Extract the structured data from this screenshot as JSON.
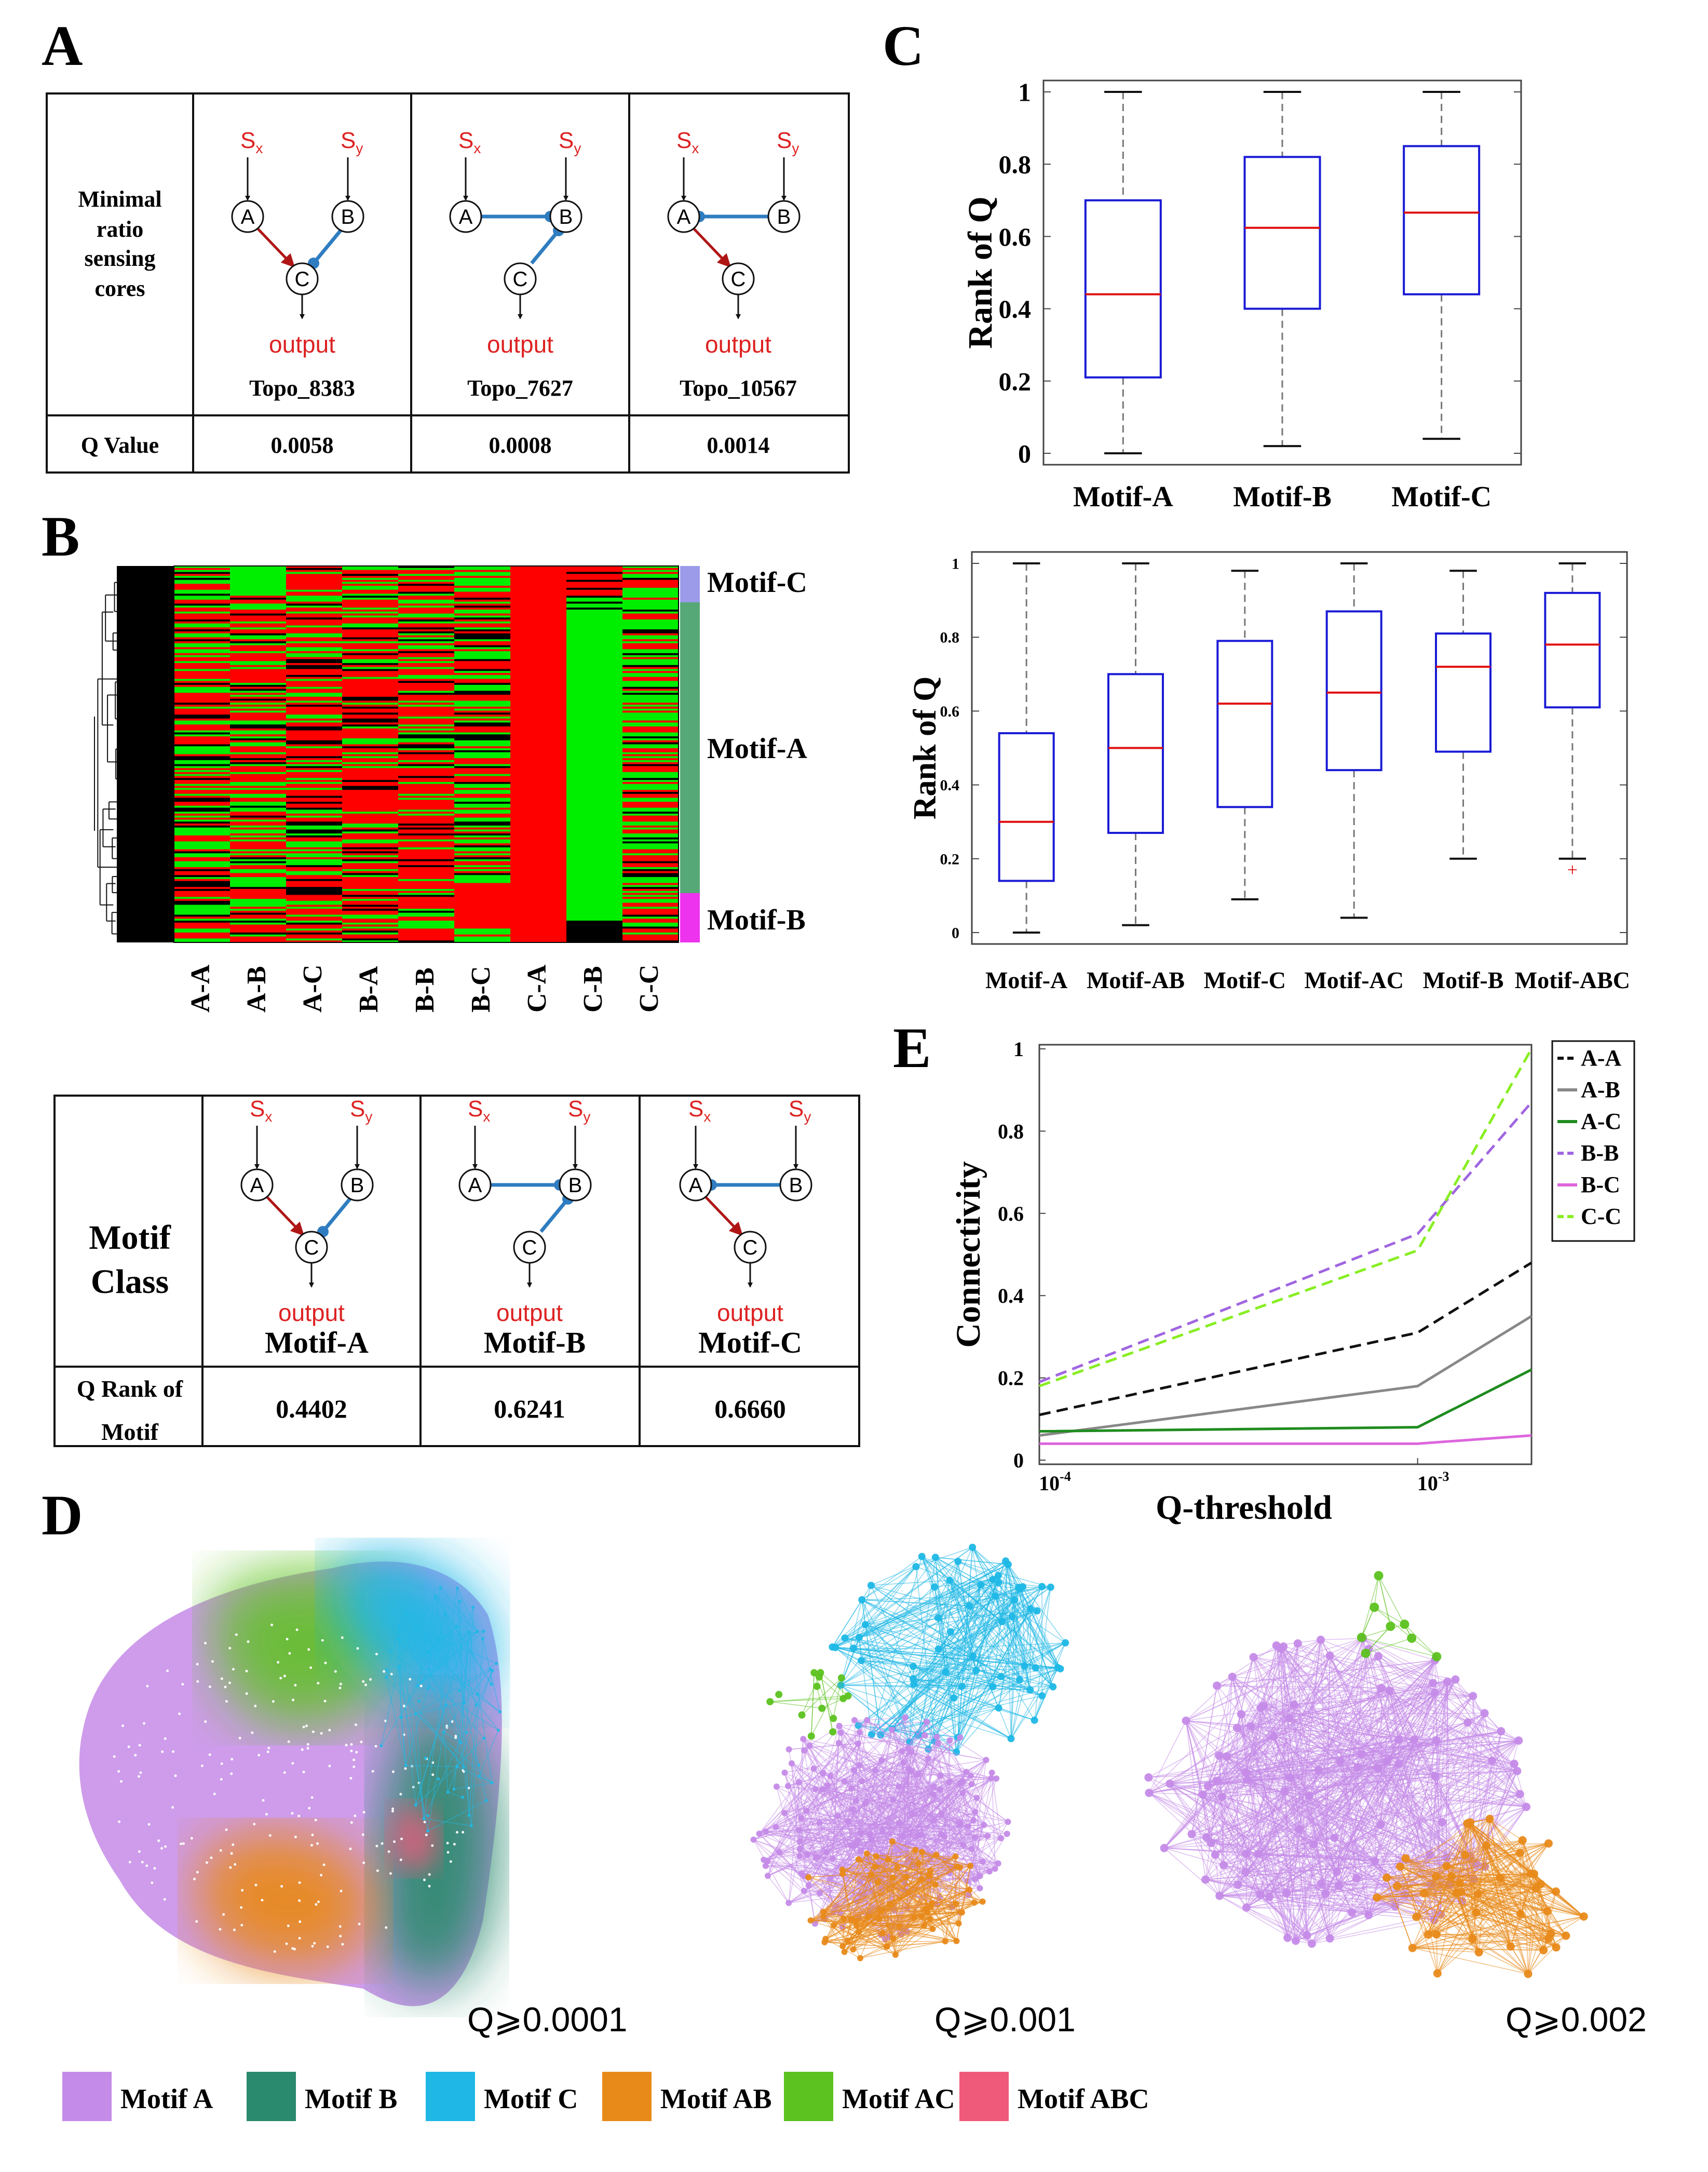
{
  "panel_letters": {
    "a": "A",
    "b": "B",
    "c": "C",
    "d": "D",
    "e": "E"
  },
  "motif_cards": [
    {
      "topo": "Topo_8383",
      "q": "0.0058",
      "rank": "0.4402",
      "name": "Motif-A"
    },
    {
      "topo": "Topo_7627",
      "q": "0.0008",
      "rank": "0.6241",
      "name": "Motif-B"
    },
    {
      "topo": "Topo_10567",
      "q": "0.0014",
      "rank": "0.6660",
      "name": "Motif-C"
    }
  ],
  "table_a": {
    "row_label_lines": [
      "Minimal",
      "ratio",
      "sensing",
      "cores"
    ],
    "q_label": "Q Value"
  },
  "table_b": {
    "class_lines": [
      "Motif",
      "Class"
    ],
    "rank_lines": [
      "Q Rank of",
      "Motif"
    ]
  },
  "network_labels": {
    "sx_base": "S",
    "sx_sub": "x",
    "sy_base": "S",
    "sy_sub": "y",
    "node_a": "A",
    "node_b": "B",
    "node_c": "C",
    "output": "output"
  },
  "heatmap": {
    "columns": [
      "A-A",
      "A-B",
      "A-C",
      "B-A",
      "B-B",
      "B-C",
      "C-A",
      "C-B",
      "C-C"
    ],
    "clusters": [
      {
        "name": "Motif-C",
        "color": "#9b9bea"
      },
      {
        "name": "Motif-A",
        "color": "#56a877"
      },
      {
        "name": "Motif-B",
        "color": "#ee33ee"
      }
    ],
    "colors": {
      "high": "#ff0000",
      "low": "#00ee00",
      "zero": "#000000"
    }
  },
  "chart_data": [
    {
      "id": "C1",
      "type": "box",
      "ylabel": "Rank of Q",
      "ylim": [
        0,
        1
      ],
      "yticks": [
        "0",
        "0.2",
        "0.4",
        "0.6",
        "0.8",
        "1"
      ],
      "series": [
        {
          "name": "Motif-A",
          "min": 0.0,
          "q1": 0.21,
          "median": 0.44,
          "q3": 0.7,
          "max": 1.0
        },
        {
          "name": "Motif-B",
          "min": 0.02,
          "q1": 0.4,
          "median": 0.624,
          "q3": 0.82,
          "max": 1.0
        },
        {
          "name": "Motif-C",
          "min": 0.04,
          "q1": 0.44,
          "median": 0.666,
          "q3": 0.85,
          "max": 1.0
        }
      ]
    },
    {
      "id": "C2",
      "type": "box",
      "ylabel": "Rank of Q",
      "ylim": [
        0,
        1
      ],
      "yticks": [
        "0",
        "0.2",
        "0.4",
        "0.6",
        "0.8",
        "1"
      ],
      "series": [
        {
          "name": "Motif-A",
          "min": 0.0,
          "q1": 0.14,
          "median": 0.3,
          "q3": 0.54,
          "max": 1.0
        },
        {
          "name": "Motif-AB",
          "min": 0.02,
          "q1": 0.27,
          "median": 0.5,
          "q3": 0.7,
          "max": 1.0
        },
        {
          "name": "Motif-C",
          "min": 0.09,
          "q1": 0.34,
          "median": 0.62,
          "q3": 0.79,
          "max": 0.98
        },
        {
          "name": "Motif-AC",
          "min": 0.04,
          "q1": 0.44,
          "median": 0.65,
          "q3": 0.87,
          "max": 1.0
        },
        {
          "name": "Motif-B",
          "min": 0.2,
          "q1": 0.49,
          "median": 0.72,
          "q3": 0.81,
          "max": 0.98
        },
        {
          "name": "Motif-ABC",
          "min": 0.2,
          "q1": 0.61,
          "median": 0.78,
          "q3": 0.92,
          "max": 1.0,
          "outliers": [
            0.17
          ]
        }
      ]
    },
    {
      "id": "E",
      "type": "line",
      "xlabel": "Q-threshold",
      "ylabel": "Connectivity",
      "xscale": "log",
      "xlim": [
        0.0001,
        0.002
      ],
      "ylim": [
        0,
        1
      ],
      "yticks": [
        "0",
        "0.2",
        "0.4",
        "0.6",
        "0.8",
        "1"
      ],
      "xticks": [
        {
          "base": "10",
          "exp": "-4",
          "value": 0.0001
        },
        {
          "base": "10",
          "exp": "-3",
          "value": 0.001
        }
      ],
      "x": [
        0.0001,
        0.001,
        0.002
      ],
      "series": [
        {
          "name": "A-A",
          "color": "#111111",
          "dash": true,
          "values": [
            0.11,
            0.31,
            0.48
          ]
        },
        {
          "name": "A-B",
          "color": "#888888",
          "dash": false,
          "values": [
            0.06,
            0.18,
            0.35
          ]
        },
        {
          "name": "A-C",
          "color": "#1f8c1f",
          "dash": false,
          "values": [
            0.07,
            0.08,
            0.22
          ]
        },
        {
          "name": "B-B",
          "color": "#a066e0",
          "dash": true,
          "values": [
            0.19,
            0.55,
            0.87
          ]
        },
        {
          "name": "B-C",
          "color": "#dd66dd",
          "dash": false,
          "values": [
            0.04,
            0.04,
            0.06
          ]
        },
        {
          "name": "C-C",
          "color": "#88ee22",
          "dash": true,
          "values": [
            0.18,
            0.51,
            1.0
          ]
        }
      ]
    }
  ],
  "networks": {
    "thresholds": [
      "Q⩾0.0001",
      "Q⩾0.001",
      "Q⩾0.002"
    ],
    "legend": [
      {
        "name": "Motif A",
        "color": "#c58be8"
      },
      {
        "name": "Motif B",
        "color": "#2a8a6e"
      },
      {
        "name": "Motif C",
        "color": "#1fb8e6"
      },
      {
        "name": "Motif AB",
        "color": "#e88a1a"
      },
      {
        "name": "Motif AC",
        "color": "#5cc21f"
      },
      {
        "name": "Motif ABC",
        "color": "#ef5a7a"
      }
    ]
  }
}
